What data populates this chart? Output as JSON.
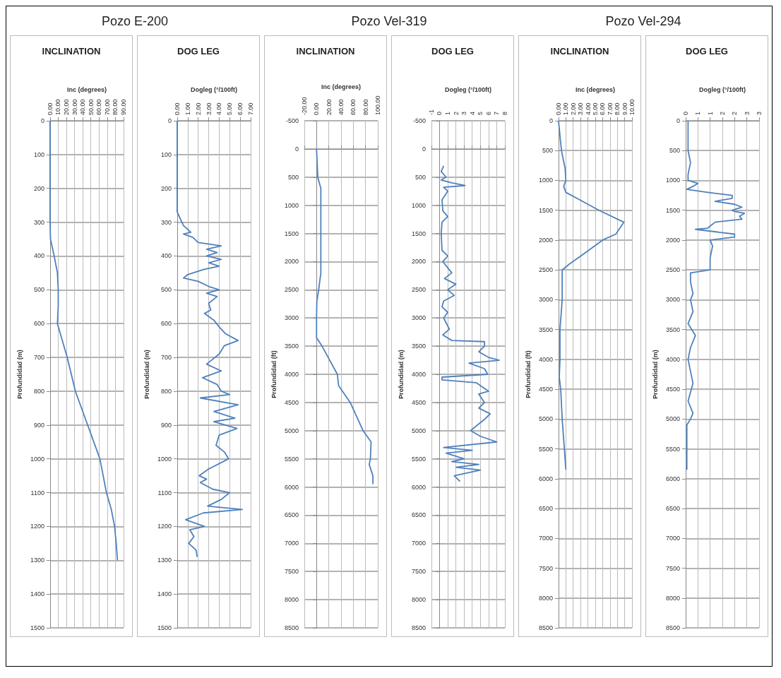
{
  "chart_data": [
    {
      "type": "line",
      "subtitle": "Pozo E-200",
      "title": "INCLINATION",
      "xlabel": "Inc (degrees)",
      "ylabel": "Profundidad (m)",
      "color": "#4f81bd",
      "marker": "none",
      "grid": true,
      "xlim": [
        0,
        90
      ],
      "xticks": [
        {
          "value": 0,
          "label": "0.00"
        },
        {
          "value": 10,
          "label": "10.00"
        },
        {
          "value": 20,
          "label": "20.00"
        },
        {
          "value": 30,
          "label": "30.00"
        },
        {
          "value": 40,
          "label": "40.00"
        },
        {
          "value": 50,
          "label": "50.00"
        },
        {
          "value": 60,
          "label": "60.00"
        },
        {
          "value": 70,
          "label": "70.00"
        },
        {
          "value": 80,
          "label": "80.00"
        },
        {
          "value": 90,
          "label": "90.00"
        }
      ],
      "ylim": [
        1500,
        0
      ],
      "yticks": [
        0,
        100,
        200,
        300,
        400,
        500,
        600,
        700,
        800,
        900,
        1000,
        1100,
        1200,
        1300,
        1400,
        1500
      ],
      "x": [
        0,
        0,
        0,
        0.5,
        5,
        9,
        10,
        10,
        9,
        15,
        21,
        31,
        46,
        61,
        69,
        75,
        79,
        81,
        82.5
      ],
      "values": [
        0,
        100,
        300,
        350,
        400,
        450,
        500,
        550,
        600,
        650,
        700,
        800,
        900,
        1000,
        1100,
        1150,
        1200,
        1250,
        1300
      ]
    },
    {
      "type": "line",
      "title": "DOG LEG",
      "xlabel": "Dogleg (°/100ft)",
      "ylabel": "Profundidad (m)",
      "color": "#4f81bd",
      "marker": "none",
      "grid": true,
      "xlim": [
        0,
        7
      ],
      "xticks": [
        {
          "value": 0,
          "label": "0.00"
        },
        {
          "value": 1,
          "label": "1.00"
        },
        {
          "value": 2,
          "label": "2.00"
        },
        {
          "value": 3,
          "label": "3.00"
        },
        {
          "value": 4,
          "label": "4.00"
        },
        {
          "value": 5,
          "label": "5.00"
        },
        {
          "value": 6,
          "label": "6.00"
        },
        {
          "value": 7,
          "label": "7.00"
        }
      ],
      "ylim": [
        1500,
        0
      ],
      "yticks": [
        0,
        100,
        200,
        300,
        400,
        500,
        600,
        700,
        800,
        900,
        1000,
        1100,
        1200,
        1300,
        1400,
        1500
      ],
      "x": [
        0,
        0,
        0.3,
        0.6,
        1.3,
        0.6,
        1.5,
        2.0,
        4.2,
        2.8,
        3.8,
        2.8,
        4.2,
        3.0,
        4.0,
        2.5,
        1.0,
        0.6,
        2.0,
        3.0,
        4.0,
        2.8,
        3.8,
        3.0,
        3.2,
        2.6,
        3.5,
        4.0,
        4.6,
        5.8,
        4.5,
        4.0,
        3.2,
        2.8,
        4.2,
        2.4,
        3.8,
        4.2,
        5.0,
        2.2,
        5.8,
        3.5,
        5.5,
        3.5,
        5.7,
        4.0,
        3.7,
        4.5,
        4.9,
        3.0,
        2.1,
        2.8,
        2.2,
        3.4,
        5.0,
        4.2,
        2.9,
        6.2,
        2.5,
        0.8,
        2.6,
        1.2,
        1.6,
        1.1,
        1.8,
        1.9
      ],
      "values": [
        0,
        270,
        290,
        310,
        330,
        335,
        345,
        360,
        370,
        380,
        390,
        400,
        410,
        420,
        430,
        440,
        455,
        465,
        475,
        490,
        500,
        510,
        520,
        540,
        560,
        570,
        590,
        610,
        630,
        650,
        665,
        690,
        710,
        720,
        740,
        760,
        780,
        800,
        810,
        820,
        840,
        860,
        880,
        890,
        910,
        930,
        960,
        980,
        1000,
        1030,
        1050,
        1060,
        1070,
        1090,
        1100,
        1120,
        1140,
        1150,
        1160,
        1180,
        1200,
        1210,
        1230,
        1250,
        1270,
        1290
      ]
    },
    {
      "type": "line",
      "subtitle": "Pozo Vel-319",
      "title": "INCLINATION",
      "xlabel": "Inc (degrees)",
      "ylabel": "Profundidad (ft)",
      "color": "#4f81bd",
      "marker": "none",
      "grid": true,
      "xlim": [
        -20,
        100
      ],
      "xticks": [
        {
          "value": -20,
          "label": "-20.00"
        },
        {
          "value": 0,
          "label": "0.00"
        },
        {
          "value": 20,
          "label": "20.00"
        },
        {
          "value": 40,
          "label": "40.00"
        },
        {
          "value": 60,
          "label": "60.00"
        },
        {
          "value": 80,
          "label": "80.00"
        },
        {
          "value": 100,
          "label": "100.00"
        }
      ],
      "ylim": [
        8500,
        -500
      ],
      "yticks": [
        -500,
        0,
        500,
        1000,
        1500,
        2000,
        2500,
        3000,
        3500,
        4000,
        4500,
        5000,
        5500,
        6000,
        6500,
        7000,
        7500,
        8000,
        8500
      ],
      "x": [
        0,
        2,
        7,
        7,
        7,
        3.5,
        0.5,
        0,
        0,
        9,
        34,
        36,
        55,
        76,
        89,
        88,
        86,
        92,
        92
      ],
      "values": [
        0,
        500,
        700,
        1500,
        2200,
        2500,
        2700,
        3000,
        3350,
        3500,
        4000,
        4200,
        4500,
        5000,
        5200,
        5500,
        5600,
        5800,
        5950
      ]
    },
    {
      "type": "line",
      "title": "DOG LEG",
      "xlabel": "Dogleg (°/100ft)",
      "ylabel": "Profundidad (m)",
      "color": "#4f81bd",
      "marker": "none",
      "grid": true,
      "xlim": [
        -1,
        8
      ],
      "xticks": [
        -1,
        0,
        1,
        2,
        3,
        4,
        5,
        6,
        7,
        8
      ],
      "ylim": [
        8500,
        -500
      ],
      "yticks": [
        -500,
        0,
        500,
        1000,
        1500,
        2000,
        2500,
        3000,
        3500,
        4000,
        4500,
        5000,
        5500,
        6000,
        6500,
        7000,
        7500,
        8000,
        8500
      ],
      "x": [
        0.5,
        0.2,
        0.8,
        0.2,
        1.5,
        3.1,
        0.5,
        1.0,
        0.3,
        0.4,
        1.0,
        0.3,
        0.2,
        0.3,
        1.0,
        0.4,
        1.5,
        0.6,
        2.0,
        1.0,
        1.8,
        0.5,
        0.3,
        1.0,
        0.5,
        1.2,
        0.4,
        1.5,
        5.5,
        5.5,
        4.8,
        6.0,
        7.3,
        3.6,
        5.5,
        5.9,
        0.3,
        0.3,
        4.5,
        6.0,
        4.8,
        5.5,
        4.8,
        6.2,
        5.5,
        3.8,
        5.0,
        7.0,
        0.5,
        4.0,
        0.8,
        3.0,
        1.5,
        4.8,
        2.0,
        5.0,
        1.8,
        2.5
      ],
      "values": [
        300,
        400,
        500,
        550,
        600,
        650,
        680,
        750,
        900,
        1100,
        1200,
        1300,
        1500,
        1800,
        1900,
        2000,
        2200,
        2300,
        2400,
        2500,
        2600,
        2700,
        2800,
        2900,
        3000,
        3200,
        3300,
        3400,
        3420,
        3500,
        3600,
        3700,
        3750,
        3800,
        3900,
        4000,
        4050,
        4100,
        4150,
        4300,
        4350,
        4500,
        4600,
        4700,
        4800,
        5000,
        5100,
        5200,
        5300,
        5350,
        5400,
        5500,
        5550,
        5600,
        5650,
        5700,
        5800,
        5900
      ]
    },
    {
      "type": "line",
      "subtitle": "Pozo Vel-294",
      "title": "INCLINATION",
      "xlabel": "Inc (degrees)",
      "ylabel": "Profundidad (ft)",
      "color": "#4f81bd",
      "marker": "none",
      "grid": true,
      "xlim": [
        0,
        10
      ],
      "xticks": [
        {
          "value": 0,
          "label": "0.00"
        },
        {
          "value": 1,
          "label": "1.00"
        },
        {
          "value": 2,
          "label": "2.00"
        },
        {
          "value": 3,
          "label": "3.00"
        },
        {
          "value": 4,
          "label": "4.00"
        },
        {
          "value": 5,
          "label": "5.00"
        },
        {
          "value": 6,
          "label": "6.00"
        },
        {
          "value": 7,
          "label": "7.00"
        },
        {
          "value": 8,
          "label": "8.00"
        },
        {
          "value": 9,
          "label": "9.00"
        },
        {
          "value": 10,
          "label": "10.00"
        }
      ],
      "ylim": [
        8500,
        0
      ],
      "yticks": [
        0,
        500,
        1000,
        1500,
        2000,
        2500,
        3000,
        3500,
        4000,
        4500,
        5000,
        5500,
        6000,
        6500,
        7000,
        7500,
        8000,
        8500
      ],
      "x": [
        0,
        0.4,
        0.9,
        1.0,
        0.7,
        1.0,
        2.5,
        5.5,
        8.9,
        7.8,
        6.0,
        3.8,
        1.5,
        0.5,
        0.5,
        0.5,
        0.2,
        0.2,
        0.1,
        0.3,
        0.5,
        0.8,
        1.0
      ],
      "values": [
        0,
        500,
        800,
        1000,
        1100,
        1200,
        1300,
        1500,
        1700,
        1900,
        2000,
        2200,
        2400,
        2500,
        2700,
        3000,
        3500,
        4000,
        4300,
        4500,
        5000,
        5500,
        5850
      ]
    },
    {
      "type": "line",
      "title": "DOG LEG",
      "xlabel": "Dogleg (°/100ft)",
      "ylabel": "Profundidad (m)",
      "color": "#4f81bd",
      "marker": "none",
      "grid": true,
      "xlim": [
        0,
        3
      ],
      "xticks": [
        0,
        {
          "value": 0.5,
          "label": "1"
        },
        1,
        {
          "value": 1.5,
          "label": "2"
        },
        2,
        {
          "value": 2.5,
          "label": "3"
        },
        3
      ],
      "ylim": [
        8500,
        0
      ],
      "yticks": [
        0,
        500,
        1000,
        1500,
        2000,
        2500,
        3000,
        3500,
        4000,
        4500,
        5000,
        5500,
        6000,
        6500,
        7000,
        7500,
        8000,
        8500
      ],
      "x": [
        0.1,
        0.1,
        0.2,
        0.1,
        0.1,
        0.5,
        0.3,
        0.05,
        0.9,
        1.9,
        1.9,
        1.2,
        2.0,
        2.3,
        1.9,
        2.0,
        2.4,
        2.2,
        2.3,
        1.2,
        0.9,
        0.4,
        2.0,
        2.0,
        1.0,
        1.1,
        1.0,
        1.0,
        1.0,
        0.2,
        0.2,
        0.3,
        0.2,
        0.3,
        0.1,
        0.4,
        0.2,
        0.1,
        0.3,
        0.1,
        0.3,
        0.2,
        0.05,
        0.05
      ],
      "values": [
        0,
        500,
        700,
        900,
        1000,
        1050,
        1100,
        1150,
        1200,
        1250,
        1300,
        1350,
        1400,
        1450,
        1500,
        1520,
        1550,
        1600,
        1650,
        1700,
        1800,
        1820,
        1900,
        1950,
        2000,
        2100,
        2300,
        2400,
        2500,
        2550,
        2700,
        2900,
        3000,
        3200,
        3400,
        3600,
        3800,
        4000,
        4400,
        4700,
        4900,
        5000,
        5100,
        5850
      ]
    }
  ]
}
